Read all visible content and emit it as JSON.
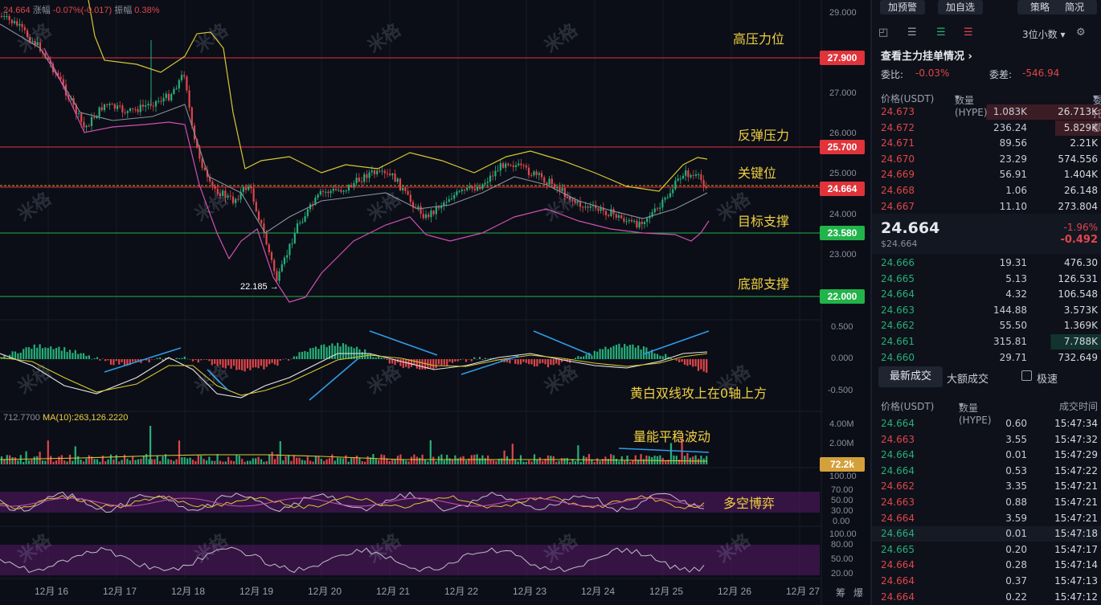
{
  "top_info": {
    "price": "24.664",
    "chg_label": "涨幅",
    "chg_value": "-0.07%(-0.017)",
    "amp_label": "振幅",
    "amp_value": "0.38%"
  },
  "levels": [
    {
      "value": "27.900",
      "label": "高压力位",
      "color": "#e0333a"
    },
    {
      "value": "25.700",
      "label": "反弹压力",
      "color": "#e0333a"
    },
    {
      "value": "24.664",
      "label": "关键位",
      "color": "#e0333a"
    },
    {
      "value": "23.580",
      "label": "目标支撑",
      "color": "#22b34a"
    },
    {
      "value": "22.000",
      "label": "底部支撑",
      "color": "#22b34a"
    }
  ],
  "price_axis": [
    "29.000",
    "28.000",
    "27.000",
    "26.000",
    "25.000",
    "24.000",
    "23.000"
  ],
  "low_marker": "22.185",
  "macd": {
    "axis": [
      "0.500",
      "0.000",
      "-0.500"
    ],
    "note": "黄白双线攻上在0轴上方"
  },
  "volume": {
    "header_left": "712.7700",
    "ma_label": "MA(10):263,126.2220",
    "axis": [
      "4.00M",
      "2.00M"
    ],
    "current": "72.2k",
    "note": "量能平稳波动"
  },
  "kdj": {
    "axis": [
      "100.00",
      "70.00",
      "50.00",
      "30.00",
      "0.00"
    ],
    "note": "多空博弈"
  },
  "rsi": {
    "axis": [
      "100.00",
      "80.00",
      "50.00",
      "20.00"
    ]
  },
  "dates": [
    "12月 16",
    "12月 17",
    "12月 18",
    "12月 19",
    "12月 20",
    "12月 21",
    "12月 22",
    "12月 23",
    "12月 24",
    "12月 25",
    "12月 26",
    "12月 27"
  ],
  "bottom_right": [
    "筹",
    "爆"
  ],
  "watermark": "米格",
  "panel": {
    "buttons": [
      "加预警",
      "加自选",
      "策略",
      "简况"
    ],
    "decimals": "3位小数",
    "depth_link": "查看主力挂单情况",
    "ratio_label": "委比:",
    "ratio_value": "-0.03%",
    "diff_label": "委差:",
    "diff_value": "-546.94",
    "book_headers": [
      "价格(USDT)",
      "数量 (HYPE)",
      "委托额"
    ],
    "asks": [
      {
        "p": "24.673",
        "q": "1.083K",
        "a": "26.713K"
      },
      {
        "p": "24.672",
        "q": "236.24",
        "a": "5.829K"
      },
      {
        "p": "24.671",
        "q": "89.56",
        "a": "2.21K"
      },
      {
        "p": "24.670",
        "q": "23.29",
        "a": "574.556"
      },
      {
        "p": "24.669",
        "q": "56.91",
        "a": "1.404K"
      },
      {
        "p": "24.668",
        "q": "1.06",
        "a": "26.148"
      },
      {
        "p": "24.667",
        "q": "11.10",
        "a": "273.804"
      }
    ],
    "last_price": "24.664",
    "last_usd": "$24.664",
    "last_pct": "-1.96%",
    "last_chg": "-0.492",
    "bids": [
      {
        "p": "24.666",
        "q": "19.31",
        "a": "476.30"
      },
      {
        "p": "24.665",
        "q": "5.13",
        "a": "126.531"
      },
      {
        "p": "24.664",
        "q": "4.32",
        "a": "106.548"
      },
      {
        "p": "24.663",
        "q": "144.88",
        "a": "3.573K"
      },
      {
        "p": "24.662",
        "q": "55.50",
        "a": "1.369K"
      },
      {
        "p": "24.661",
        "q": "315.81",
        "a": "7.788K"
      },
      {
        "p": "24.660",
        "q": "29.71",
        "a": "732.649"
      }
    ],
    "tabs": [
      "最新成交",
      "大额成交"
    ],
    "fast_label": "极速",
    "trade_headers": [
      "价格(USDT)",
      "数量(HYPE)",
      "成交时间"
    ],
    "trades": [
      {
        "p": "24.664",
        "q": "0.60",
        "t": "15:47:34",
        "side": "buy"
      },
      {
        "p": "24.663",
        "q": "3.55",
        "t": "15:47:32",
        "side": "sell"
      },
      {
        "p": "24.664",
        "q": "0.01",
        "t": "15:47:29",
        "side": "buy"
      },
      {
        "p": "24.664",
        "q": "0.53",
        "t": "15:47:22",
        "side": "buy"
      },
      {
        "p": "24.662",
        "q": "3.35",
        "t": "15:47:21",
        "side": "sell"
      },
      {
        "p": "24.663",
        "q": "0.88",
        "t": "15:47:21",
        "side": "sell"
      },
      {
        "p": "24.664",
        "q": "3.59",
        "t": "15:47:21",
        "side": "sell"
      },
      {
        "p": "24.664",
        "q": "0.01",
        "t": "15:47:18",
        "side": "buy"
      },
      {
        "p": "24.665",
        "q": "0.20",
        "t": "15:47:17",
        "side": "buy"
      },
      {
        "p": "24.664",
        "q": "0.28",
        "t": "15:47:14",
        "side": "sell"
      },
      {
        "p": "24.664",
        "q": "0.37",
        "t": "15:47:13",
        "side": "sell"
      },
      {
        "p": "24.664",
        "q": "0.22",
        "t": "15:47:12",
        "side": "sell"
      }
    ]
  }
}
